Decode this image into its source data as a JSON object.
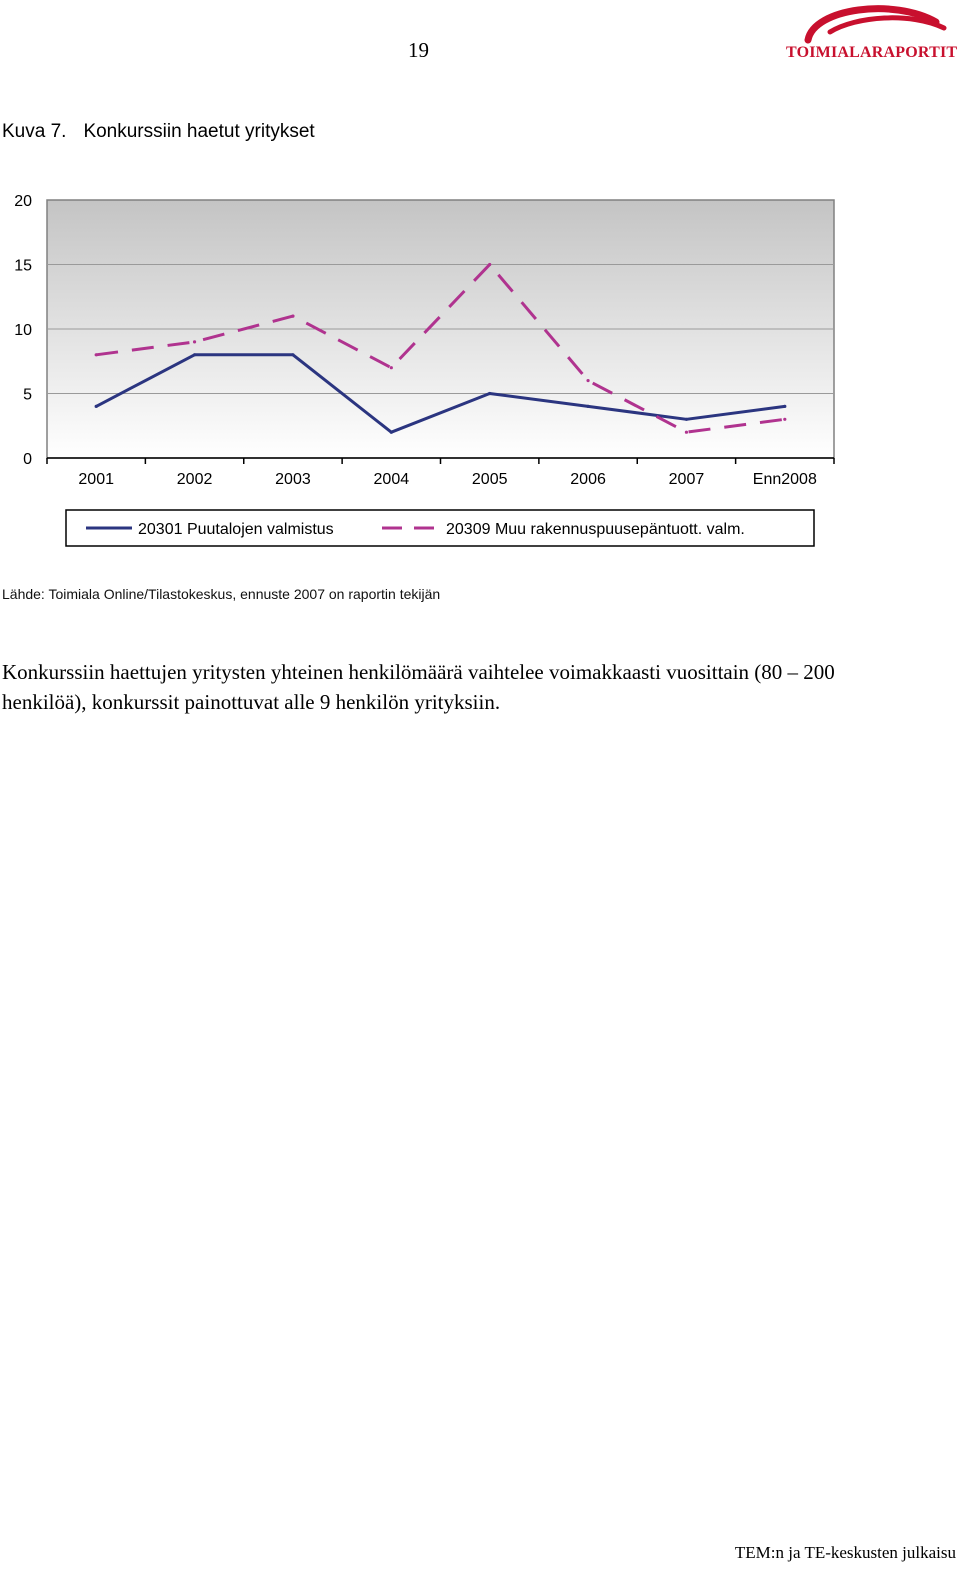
{
  "header": {
    "page_number": "19",
    "logo_text": "TOIMIALARAPORTIT",
    "logo_color": "#c8102e"
  },
  "figure": {
    "label": "Kuva 7.",
    "title": "Konkurssiin haetut yritykset"
  },
  "chart_data": {
    "type": "line",
    "title": "Konkurssiin haetut yritykset",
    "categories": [
      "2001",
      "2002",
      "2003",
      "2004",
      "2005",
      "2006",
      "2007",
      "Enn2008"
    ],
    "ylim": [
      0,
      20
    ],
    "yticks": [
      "0",
      "5",
      "10",
      "15",
      "20"
    ],
    "grid": true,
    "legend_position": "bottom",
    "series": [
      {
        "name": "20301 Puutalojen valmistus",
        "values": [
          4,
          8,
          8,
          2,
          5,
          4,
          3,
          4
        ],
        "color": "#2b3580",
        "style": "solid"
      },
      {
        "name": "20309 Muu rakennuspuusepäntuott. valm.",
        "values": [
          8,
          9,
          11,
          7,
          15,
          6,
          2,
          3
        ],
        "color": "#b0338f",
        "style": "dashed"
      }
    ]
  },
  "source": "Lähde: Toimiala Online/Tilastokeskus, ennuste 2007 on raportin tekijän",
  "body_text": "Konkurssiin haettujen yritysten yhteinen henkilömäärä vaihtelee voimakkaasti vuosittain (80 – 200 henkilöä), konkurssit painottuvat alle 9 henkilön yrityksiin.",
  "footer": "TEM:n ja TE-keskusten julkaisu"
}
